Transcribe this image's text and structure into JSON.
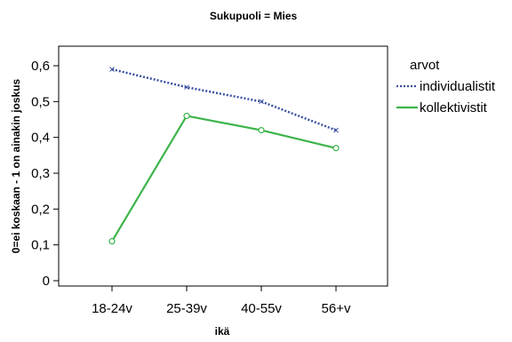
{
  "chart_data": {
    "type": "line",
    "title": "Sukupuoli = Mies",
    "xlabel": "ikä",
    "ylabel": "0=ei koskaan - 1 on ainakin joskus",
    "categories": [
      "18-24v",
      "25-39v",
      "40-55v",
      "56+v"
    ],
    "ylim": [
      0,
      0.6
    ],
    "yticks": [
      "0",
      "0,1",
      "0,2",
      "0,3",
      "0,4",
      "0,5",
      "0,6"
    ],
    "legend_title": "arvot",
    "legend_placement": "right",
    "grid": false,
    "series": [
      {
        "name": "individualistit",
        "values": [
          0.59,
          0.54,
          0.5,
          0.42
        ],
        "color": "#3a4fa3",
        "style": "dotted",
        "marker": "x"
      },
      {
        "name": "kollektivistit",
        "values": [
          0.11,
          0.46,
          0.42,
          0.37
        ],
        "color": "#3cb44a",
        "style": "solid",
        "marker": "circle"
      }
    ]
  }
}
